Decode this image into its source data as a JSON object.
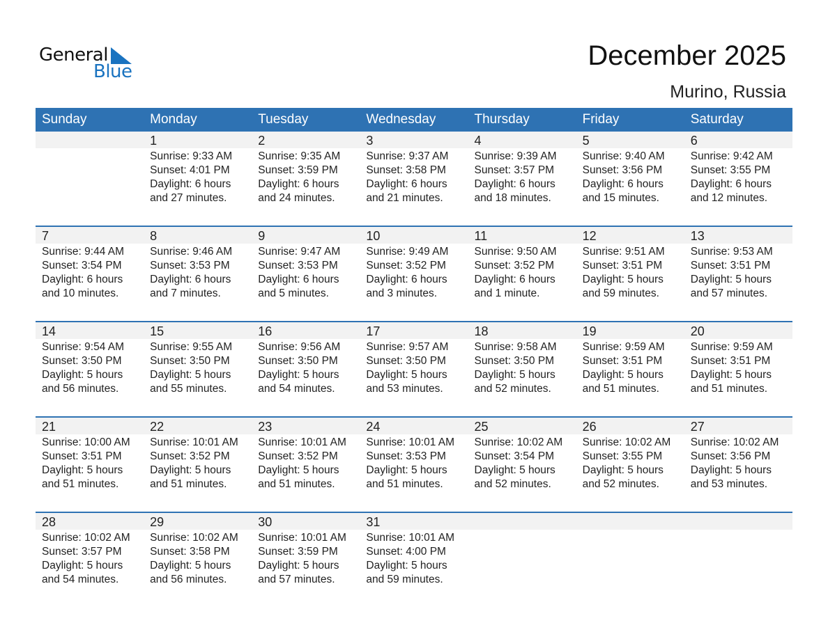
{
  "logo": {
    "general": "General",
    "blue": "Blue",
    "brand_color": "#1a73c0"
  },
  "title": "December 2025",
  "location": "Murino, Russia",
  "header_color": "#2e72b3",
  "weekdays": [
    "Sunday",
    "Monday",
    "Tuesday",
    "Wednesday",
    "Thursday",
    "Friday",
    "Saturday"
  ],
  "weeks": [
    {
      "days": [
        null,
        {
          "day": "1",
          "sunrise": "Sunrise: 9:33 AM",
          "sunset": "Sunset: 4:01 PM",
          "daylight": "Daylight: 6 hours",
          "minutes": "and 27 minutes."
        },
        {
          "day": "2",
          "sunrise": "Sunrise: 9:35 AM",
          "sunset": "Sunset: 3:59 PM",
          "daylight": "Daylight: 6 hours",
          "minutes": "and 24 minutes."
        },
        {
          "day": "3",
          "sunrise": "Sunrise: 9:37 AM",
          "sunset": "Sunset: 3:58 PM",
          "daylight": "Daylight: 6 hours",
          "minutes": "and 21 minutes."
        },
        {
          "day": "4",
          "sunrise": "Sunrise: 9:39 AM",
          "sunset": "Sunset: 3:57 PM",
          "daylight": "Daylight: 6 hours",
          "minutes": "and 18 minutes."
        },
        {
          "day": "5",
          "sunrise": "Sunrise: 9:40 AM",
          "sunset": "Sunset: 3:56 PM",
          "daylight": "Daylight: 6 hours",
          "minutes": "and 15 minutes."
        },
        {
          "day": "6",
          "sunrise": "Sunrise: 9:42 AM",
          "sunset": "Sunset: 3:55 PM",
          "daylight": "Daylight: 6 hours",
          "minutes": "and 12 minutes."
        }
      ]
    },
    {
      "days": [
        {
          "day": "7",
          "sunrise": "Sunrise: 9:44 AM",
          "sunset": "Sunset: 3:54 PM",
          "daylight": "Daylight: 6 hours",
          "minutes": "and 10 minutes."
        },
        {
          "day": "8",
          "sunrise": "Sunrise: 9:46 AM",
          "sunset": "Sunset: 3:53 PM",
          "daylight": "Daylight: 6 hours",
          "minutes": "and 7 minutes."
        },
        {
          "day": "9",
          "sunrise": "Sunrise: 9:47 AM",
          "sunset": "Sunset: 3:53 PM",
          "daylight": "Daylight: 6 hours",
          "minutes": "and 5 minutes."
        },
        {
          "day": "10",
          "sunrise": "Sunrise: 9:49 AM",
          "sunset": "Sunset: 3:52 PM",
          "daylight": "Daylight: 6 hours",
          "minutes": "and 3 minutes."
        },
        {
          "day": "11",
          "sunrise": "Sunrise: 9:50 AM",
          "sunset": "Sunset: 3:52 PM",
          "daylight": "Daylight: 6 hours",
          "minutes": "and 1 minute."
        },
        {
          "day": "12",
          "sunrise": "Sunrise: 9:51 AM",
          "sunset": "Sunset: 3:51 PM",
          "daylight": "Daylight: 5 hours",
          "minutes": "and 59 minutes."
        },
        {
          "day": "13",
          "sunrise": "Sunrise: 9:53 AM",
          "sunset": "Sunset: 3:51 PM",
          "daylight": "Daylight: 5 hours",
          "minutes": "and 57 minutes."
        }
      ]
    },
    {
      "days": [
        {
          "day": "14",
          "sunrise": "Sunrise: 9:54 AM",
          "sunset": "Sunset: 3:50 PM",
          "daylight": "Daylight: 5 hours",
          "minutes": "and 56 minutes."
        },
        {
          "day": "15",
          "sunrise": "Sunrise: 9:55 AM",
          "sunset": "Sunset: 3:50 PM",
          "daylight": "Daylight: 5 hours",
          "minutes": "and 55 minutes."
        },
        {
          "day": "16",
          "sunrise": "Sunrise: 9:56 AM",
          "sunset": "Sunset: 3:50 PM",
          "daylight": "Daylight: 5 hours",
          "minutes": "and 54 minutes."
        },
        {
          "day": "17",
          "sunrise": "Sunrise: 9:57 AM",
          "sunset": "Sunset: 3:50 PM",
          "daylight": "Daylight: 5 hours",
          "minutes": "and 53 minutes."
        },
        {
          "day": "18",
          "sunrise": "Sunrise: 9:58 AM",
          "sunset": "Sunset: 3:50 PM",
          "daylight": "Daylight: 5 hours",
          "minutes": "and 52 minutes."
        },
        {
          "day": "19",
          "sunrise": "Sunrise: 9:59 AM",
          "sunset": "Sunset: 3:51 PM",
          "daylight": "Daylight: 5 hours",
          "minutes": "and 51 minutes."
        },
        {
          "day": "20",
          "sunrise": "Sunrise: 9:59 AM",
          "sunset": "Sunset: 3:51 PM",
          "daylight": "Daylight: 5 hours",
          "minutes": "and 51 minutes."
        }
      ]
    },
    {
      "days": [
        {
          "day": "21",
          "sunrise": "Sunrise: 10:00 AM",
          "sunset": "Sunset: 3:51 PM",
          "daylight": "Daylight: 5 hours",
          "minutes": "and 51 minutes."
        },
        {
          "day": "22",
          "sunrise": "Sunrise: 10:01 AM",
          "sunset": "Sunset: 3:52 PM",
          "daylight": "Daylight: 5 hours",
          "minutes": "and 51 minutes."
        },
        {
          "day": "23",
          "sunrise": "Sunrise: 10:01 AM",
          "sunset": "Sunset: 3:52 PM",
          "daylight": "Daylight: 5 hours",
          "minutes": "and 51 minutes."
        },
        {
          "day": "24",
          "sunrise": "Sunrise: 10:01 AM",
          "sunset": "Sunset: 3:53 PM",
          "daylight": "Daylight: 5 hours",
          "minutes": "and 51 minutes."
        },
        {
          "day": "25",
          "sunrise": "Sunrise: 10:02 AM",
          "sunset": "Sunset: 3:54 PM",
          "daylight": "Daylight: 5 hours",
          "minutes": "and 52 minutes."
        },
        {
          "day": "26",
          "sunrise": "Sunrise: 10:02 AM",
          "sunset": "Sunset: 3:55 PM",
          "daylight": "Daylight: 5 hours",
          "minutes": "and 52 minutes."
        },
        {
          "day": "27",
          "sunrise": "Sunrise: 10:02 AM",
          "sunset": "Sunset: 3:56 PM",
          "daylight": "Daylight: 5 hours",
          "minutes": "and 53 minutes."
        }
      ]
    },
    {
      "days": [
        {
          "day": "28",
          "sunrise": "Sunrise: 10:02 AM",
          "sunset": "Sunset: 3:57 PM",
          "daylight": "Daylight: 5 hours",
          "minutes": "and 54 minutes."
        },
        {
          "day": "29",
          "sunrise": "Sunrise: 10:02 AM",
          "sunset": "Sunset: 3:58 PM",
          "daylight": "Daylight: 5 hours",
          "minutes": "and 56 minutes."
        },
        {
          "day": "30",
          "sunrise": "Sunrise: 10:01 AM",
          "sunset": "Sunset: 3:59 PM",
          "daylight": "Daylight: 5 hours",
          "minutes": "and 57 minutes."
        },
        {
          "day": "31",
          "sunrise": "Sunrise: 10:01 AM",
          "sunset": "Sunset: 4:00 PM",
          "daylight": "Daylight: 5 hours",
          "minutes": "and 59 minutes."
        },
        null,
        null,
        null
      ]
    }
  ]
}
